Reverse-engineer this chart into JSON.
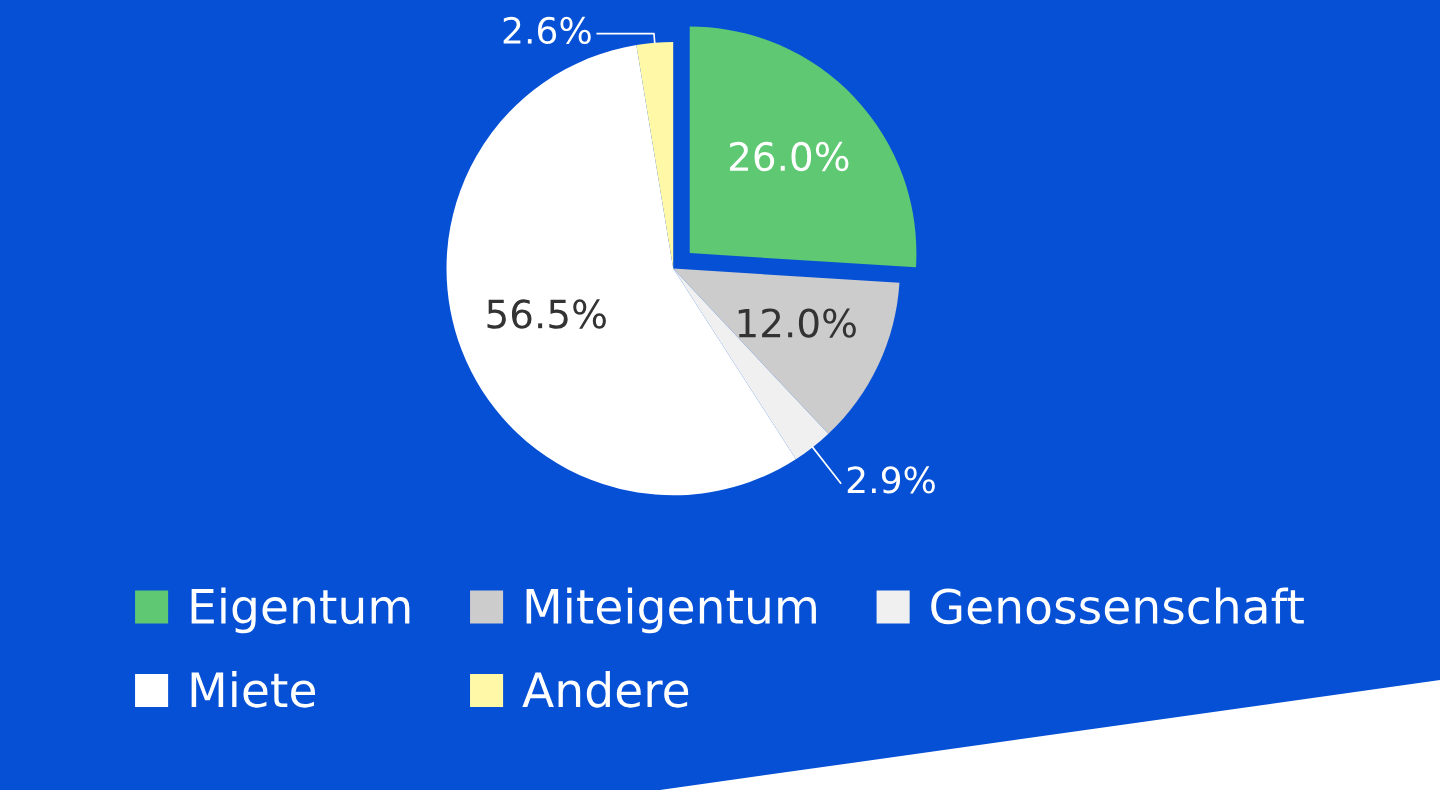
{
  "chart_data": {
    "type": "pie",
    "categories": [
      "Eigentum",
      "Miteigentum",
      "Genossenschaft",
      "Miete",
      "Andere"
    ],
    "values": [
      26.0,
      12.0,
      2.9,
      56.5,
      2.6
    ],
    "colors": [
      "#5ec872",
      "#cccccc",
      "#f0f0f0",
      "#ffffff",
      "#fff8a6"
    ],
    "value_labels": [
      "26.0%",
      "12.0%",
      "2.9%",
      "56.5%",
      "2.6%"
    ],
    "legend": "bottom"
  }
}
